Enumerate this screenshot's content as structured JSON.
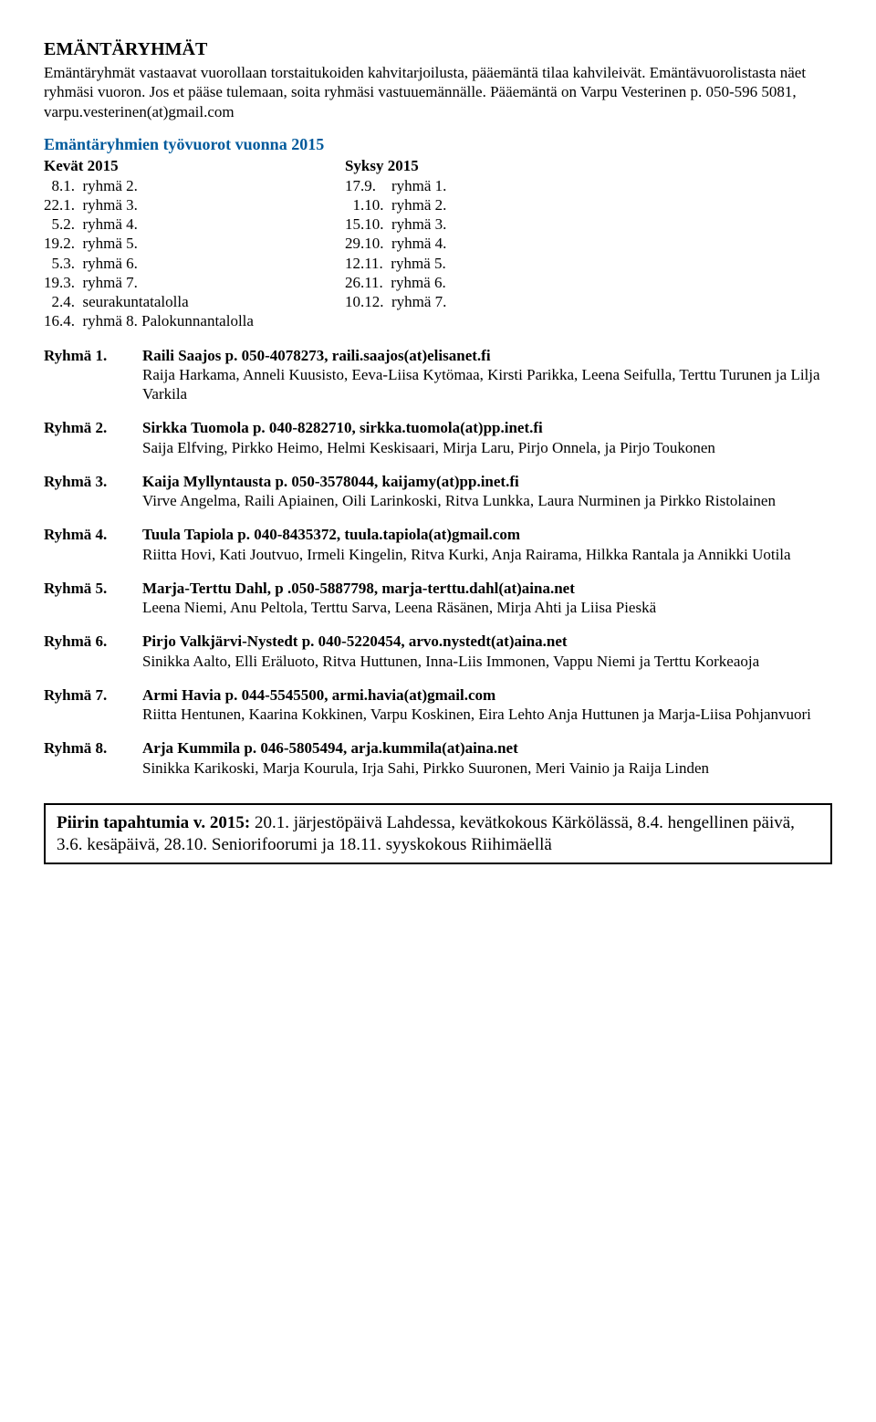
{
  "title": "EMÄNTÄRYHMÄT",
  "intro": "Emäntäryhmät vastaavat vuorollaan torstaitukoiden kahvitarjoilusta, pääemäntä tilaa kahvileivät. Emäntävuorolistasta näet ryhmäsi vuoron. Jos et pääse tulemaan, soita ryhmäsi vastuuemännälle. Pääemäntä on Varpu Vesterinen p. 050-596 5081, varpu.vesterinen(at)gmail.com",
  "section_heading": "Emäntäryhmien työvuorot vuonna 2015",
  "schedule": {
    "left": {
      "header": "Kevät 2015",
      "rows": [
        "  8.1.  ryhmä 2.",
        "22.1.  ryhmä 3.",
        "  5.2.  ryhmä 4.",
        "19.2.  ryhmä 5.",
        "  5.3.  ryhmä 6.",
        "19.3.  ryhmä 7.",
        "  2.4.  seurakuntatalolla",
        "16.4.  ryhmä 8. Palokunnantalolla"
      ]
    },
    "right": {
      "header": "Syksy 2015",
      "rows": [
        "17.9.    ryhmä 1.",
        "  1.10.  ryhmä 2.",
        "15.10.  ryhmä 3.",
        "29.10.  ryhmä 4.",
        "12.11.  ryhmä 5.",
        "26.11.  ryhmä 6.",
        "10.12.  ryhmä 7."
      ]
    }
  },
  "groups": [
    {
      "label": "Ryhmä 1.",
      "leader": "Raili Saajos p. 050-4078273, raili.saajos(at)elisanet.fi",
      "members": "Raija Harkama, Anneli Kuusisto, Eeva-Liisa Kytömaa, Kirsti Parikka, Leena Seifulla, Terttu Turunen ja Lilja Varkila"
    },
    {
      "label": "Ryhmä 2.",
      "leader": "Sirkka Tuomola p. 040-8282710, sirkka.tuomola(at)pp.inet.fi",
      "members": "Saija Elfving, Pirkko Heimo, Helmi Keskisaari, Mirja Laru, Pirjo Onnela, ja  Pirjo Toukonen"
    },
    {
      "label": "Ryhmä 3.",
      "leader": "Kaija Myllyntausta p. 050-3578044, kaijamy(at)pp.inet.fi",
      "members": "Virve Angelma, Raili Apiainen, Oili Larinkoski, Ritva Lunkka, Laura Nurminen ja Pirkko Ristolainen"
    },
    {
      "label": "Ryhmä 4.",
      "leader": "Tuula Tapiola p. 040-8435372, tuula.tapiola(at)gmail.com",
      "members": "Riitta Hovi, Kati Joutvuo, Irmeli Kingelin, Ritva Kurki, Anja Rairama, Hilkka Rantala ja Annikki Uotila"
    },
    {
      "label": "Ryhmä 5.",
      "leader": "Marja-Terttu Dahl, p .050-5887798, marja-terttu.dahl(at)aina.net",
      "members": "Leena Niemi, Anu Peltola, Terttu Sarva, Leena Räsänen, Mirja Ahti  ja Liisa Pieskä"
    },
    {
      "label": "Ryhmä 6.",
      "leader": "Pirjo Valkjärvi-Nystedt p. 040-5220454, arvo.nystedt(at)aina.net",
      "members": "Sinikka Aalto, Elli Eräluoto, Ritva Huttunen,  Inna-Liis Immonen, Vappu Niemi ja Terttu Korkeaoja"
    },
    {
      "label": "Ryhmä 7.",
      "leader": "Armi Havia p. 044-5545500, armi.havia(at)gmail.com",
      "members": "Riitta Hentunen, Kaarina Kokkinen, Varpu Koskinen, Eira Lehto Anja Huttunen ja Marja-Liisa Pohjanvuori"
    },
    {
      "label": "Ryhmä 8.",
      "leader": "Arja Kummila p. 046-5805494, arja.kummila(at)aina.net",
      "members": "Sinikka Karikoski, Marja Kourula, Irja Sahi, Pirkko Suuronen, Meri Vainio ja  Raija Linden"
    }
  ],
  "footer": {
    "lead": "Piirin tapahtumia v. 2015:",
    "rest": " 20.1.  järjestöpäivä Lahdessa, kevätkokous Kärkölässä,  8.4.  hengellinen päivä,  3.6. kesäpäivä, 28.10.  Seniorifoorumi  ja 18.11. syyskokous Riihimäellä"
  }
}
